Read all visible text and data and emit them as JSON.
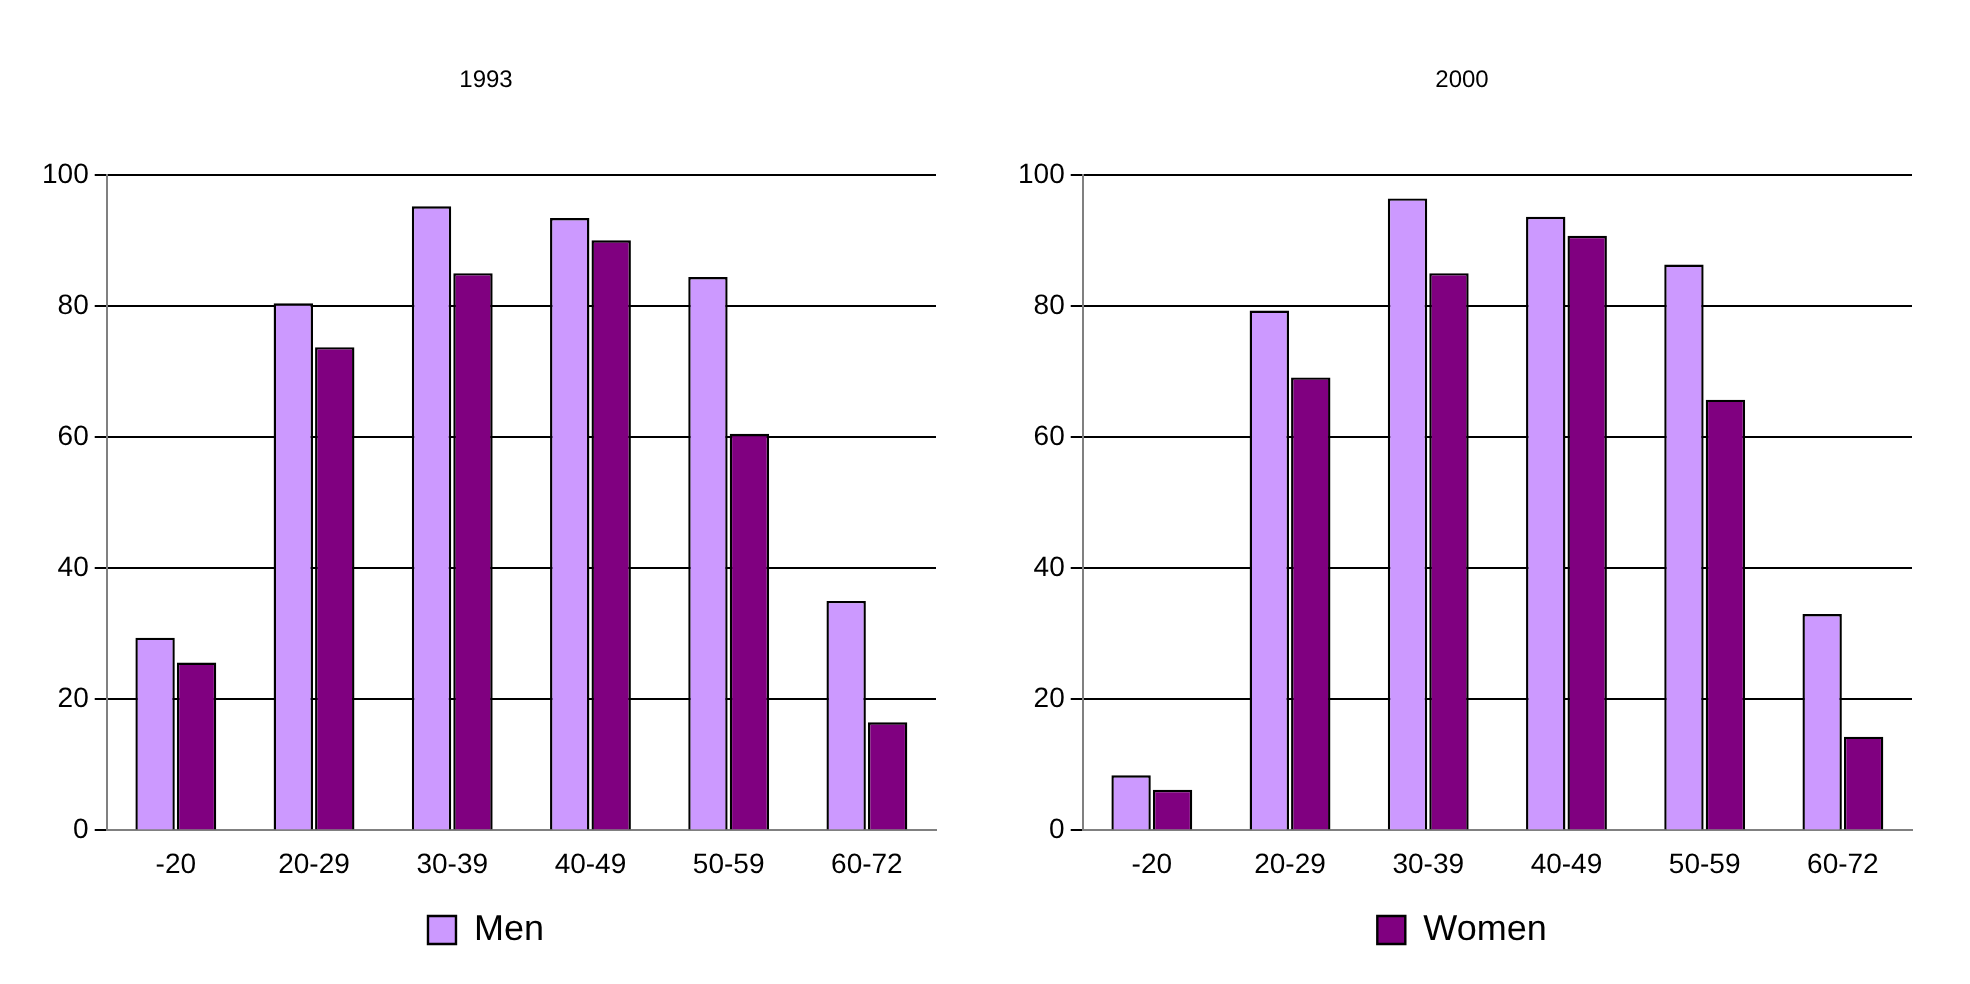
{
  "chart_data": [
    {
      "type": "bar",
      "title": "1993",
      "categories": [
        "-20",
        "20-29",
        "30-39",
        "40-49",
        "50-59",
        "60-72"
      ],
      "series": [
        {
          "name": "Men",
          "color": "#cc99ff",
          "values": [
            29.4,
            80.4,
            95.2,
            93.4,
            84.4,
            35
          ]
        },
        {
          "color": "#800080",
          "values": [
            25.6,
            73.7,
            85,
            90,
            60.5,
            16.5
          ]
        }
      ],
      "ylim": [
        0,
        100
      ],
      "yticks": [
        0,
        20,
        40,
        60,
        80,
        100
      ],
      "grid": "y",
      "legend": "bottom"
    },
    {
      "type": "bar",
      "title": "2000",
      "categories": [
        "-20",
        "20-29",
        "30-39",
        "40-49",
        "50-59",
        "60-72"
      ],
      "series": [
        {
          "color": "#cc99ff",
          "values": [
            8.4,
            79.3,
            96.4,
            93.6,
            86.3,
            33
          ]
        },
        {
          "name": "Women",
          "color": "#800080",
          "values": [
            6.2,
            69.1,
            85,
            90.7,
            65.7,
            14.3
          ]
        }
      ],
      "ylim": [
        0,
        100
      ],
      "yticks": [
        0,
        20,
        40,
        60,
        80,
        100
      ],
      "grid": "y",
      "legend": "bottom"
    }
  ]
}
